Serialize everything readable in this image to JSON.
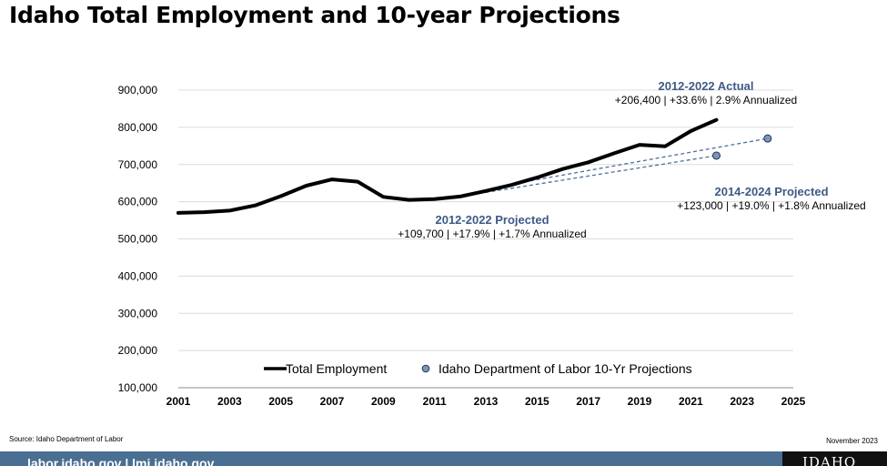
{
  "header": {
    "title": "Idaho Total Employment and 10-year Projections"
  },
  "chart_data": {
    "type": "line",
    "title": "Idaho Total Employment and 10-year Projections",
    "xlim": [
      2001,
      2025
    ],
    "ylim": [
      100000,
      900000
    ],
    "x_ticks": [
      2001,
      2003,
      2005,
      2007,
      2009,
      2011,
      2013,
      2015,
      2017,
      2019,
      2021,
      2023,
      2025
    ],
    "x_tick_labels": [
      "2001",
      "2003",
      "2005",
      "2007",
      "2009",
      "2011",
      "2013",
      "2015",
      "2017",
      "2019",
      "2021",
      "2023",
      "2025"
    ],
    "y_ticks": [
      100000,
      200000,
      300000,
      400000,
      500000,
      600000,
      700000,
      800000,
      900000
    ],
    "y_tick_labels": [
      "100,000",
      "200,000",
      "300,000",
      "400,000",
      "500,000",
      "600,000",
      "700,000",
      "800,000",
      "900,000"
    ],
    "grid": true,
    "legend_position": "bottom",
    "series": [
      {
        "name": "Total Employment",
        "color": "#000000",
        "x": [
          2001,
          2002,
          2003,
          2004,
          2005,
          2006,
          2007,
          2008,
          2009,
          2010,
          2011,
          2012,
          2013,
          2014,
          2015,
          2016,
          2017,
          2018,
          2019,
          2020,
          2021,
          2022
        ],
        "y": [
          570000,
          572000,
          576000,
          590000,
          615000,
          643000,
          660000,
          654000,
          613000,
          605000,
          607000,
          614000,
          629000,
          645000,
          665000,
          688000,
          706000,
          730000,
          753000,
          749000,
          790000,
          820000
        ]
      },
      {
        "name": "Idaho Department of Labor 10-Yr Projections",
        "color": "#7a96bd",
        "line_style": "dashed",
        "segments": [
          {
            "x": [
              2012,
              2022
            ],
            "y": [
              614000,
              724000
            ]
          },
          {
            "x": [
              2014,
              2024
            ],
            "y": [
              647000,
              770000
            ]
          }
        ]
      }
    ],
    "annotations": [
      {
        "heading": "2012-2022 Actual",
        "detail": "+206,400 | +33.6% | 2.9% Annualized"
      },
      {
        "heading": "2014-2024 Projected",
        "detail": "+123,000 | +19.0% | +1.8% Annualized"
      },
      {
        "heading": "2012-2022 Projected",
        "detail": "+109,700 | +17.9% | +1.7% Annualized"
      }
    ]
  },
  "footer": {
    "source": "Source: Idaho Department of Labor",
    "date": "November 2023",
    "links": "labor.idaho.gov | lmi.idaho.gov",
    "logo_text": "IDAHO"
  },
  "colors": {
    "accent": "#3e5a86",
    "footer_bar": "#4a6f93"
  }
}
